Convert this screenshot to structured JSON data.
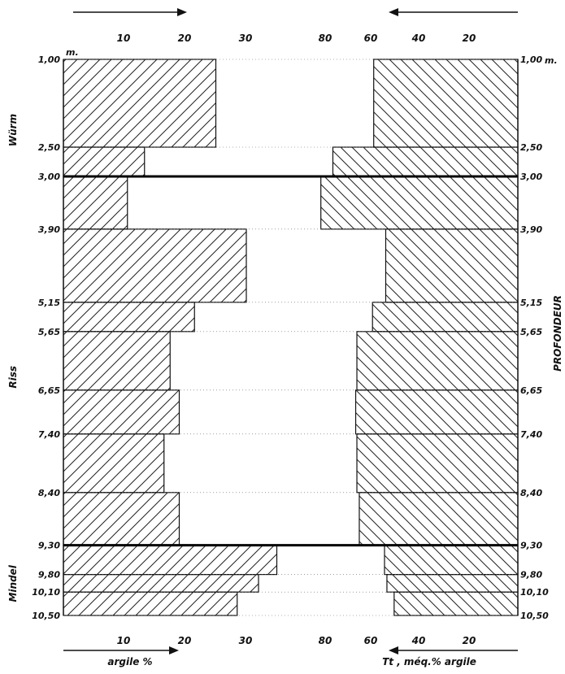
{
  "chart_data": {
    "type": "bar",
    "orientation": "horizontal, back-to-back",
    "depth_unit": "m.",
    "depth_axis_label": "PROFONDEUR",
    "depth_boundaries": [
      "1,00",
      "2,50",
      "3,00",
      "3,90",
      "5,15",
      "5,65",
      "6,65",
      "7,40",
      "8,40",
      "9,30",
      "9,80",
      "10,10",
      "10,50"
    ],
    "depth_labels_left": [
      "1,00",
      "2,50",
      "3,00",
      "3,90",
      "5,15",
      "5,65",
      "6,65",
      "7,40",
      "8,40",
      "9,30",
      "9,80",
      "10,10",
      "10,50"
    ],
    "depth_labels_right": [
      "1,00",
      "2,50",
      "3,00",
      "3,90",
      "5,15",
      "5,65",
      "6,65",
      "7,40",
      "8,40",
      "9,30",
      "9,80",
      "10,10",
      "10,50"
    ],
    "period_labels": [
      "Würm",
      "Riss",
      "Mindel"
    ],
    "period_boundaries": [
      "3,00",
      "9,30"
    ],
    "series": [
      {
        "name": "argile %",
        "side": "left",
        "direction": "increasing to the right",
        "values": [
          25,
          13.3,
          10.5,
          30,
          21.5,
          17.5,
          19,
          16.5,
          19,
          35,
          32,
          28.5
        ]
      },
      {
        "name": "Tt , méq.% argile",
        "side": "right",
        "direction": "increasing to the left",
        "values": [
          60,
          77,
          82,
          55,
          60.5,
          67,
          67.5,
          67,
          66,
          55.5,
          54.5,
          51.5
        ]
      }
    ],
    "left_axis": {
      "ticks_top": [
        "10",
        "20",
        "30"
      ],
      "ticks_bottom": [
        "10",
        "20",
        "30"
      ],
      "label": "argile %",
      "xlim": [
        0,
        30
      ]
    },
    "right_axis": {
      "ticks_top": [
        "80",
        "60",
        "40",
        "20"
      ],
      "ticks_bottom": [
        "80",
        "60",
        "40",
        "20"
      ],
      "label": "Tt , méq.% argile",
      "xlim": [
        0,
        80
      ]
    },
    "fill": "diagonal hatching",
    "color": "#111111"
  }
}
